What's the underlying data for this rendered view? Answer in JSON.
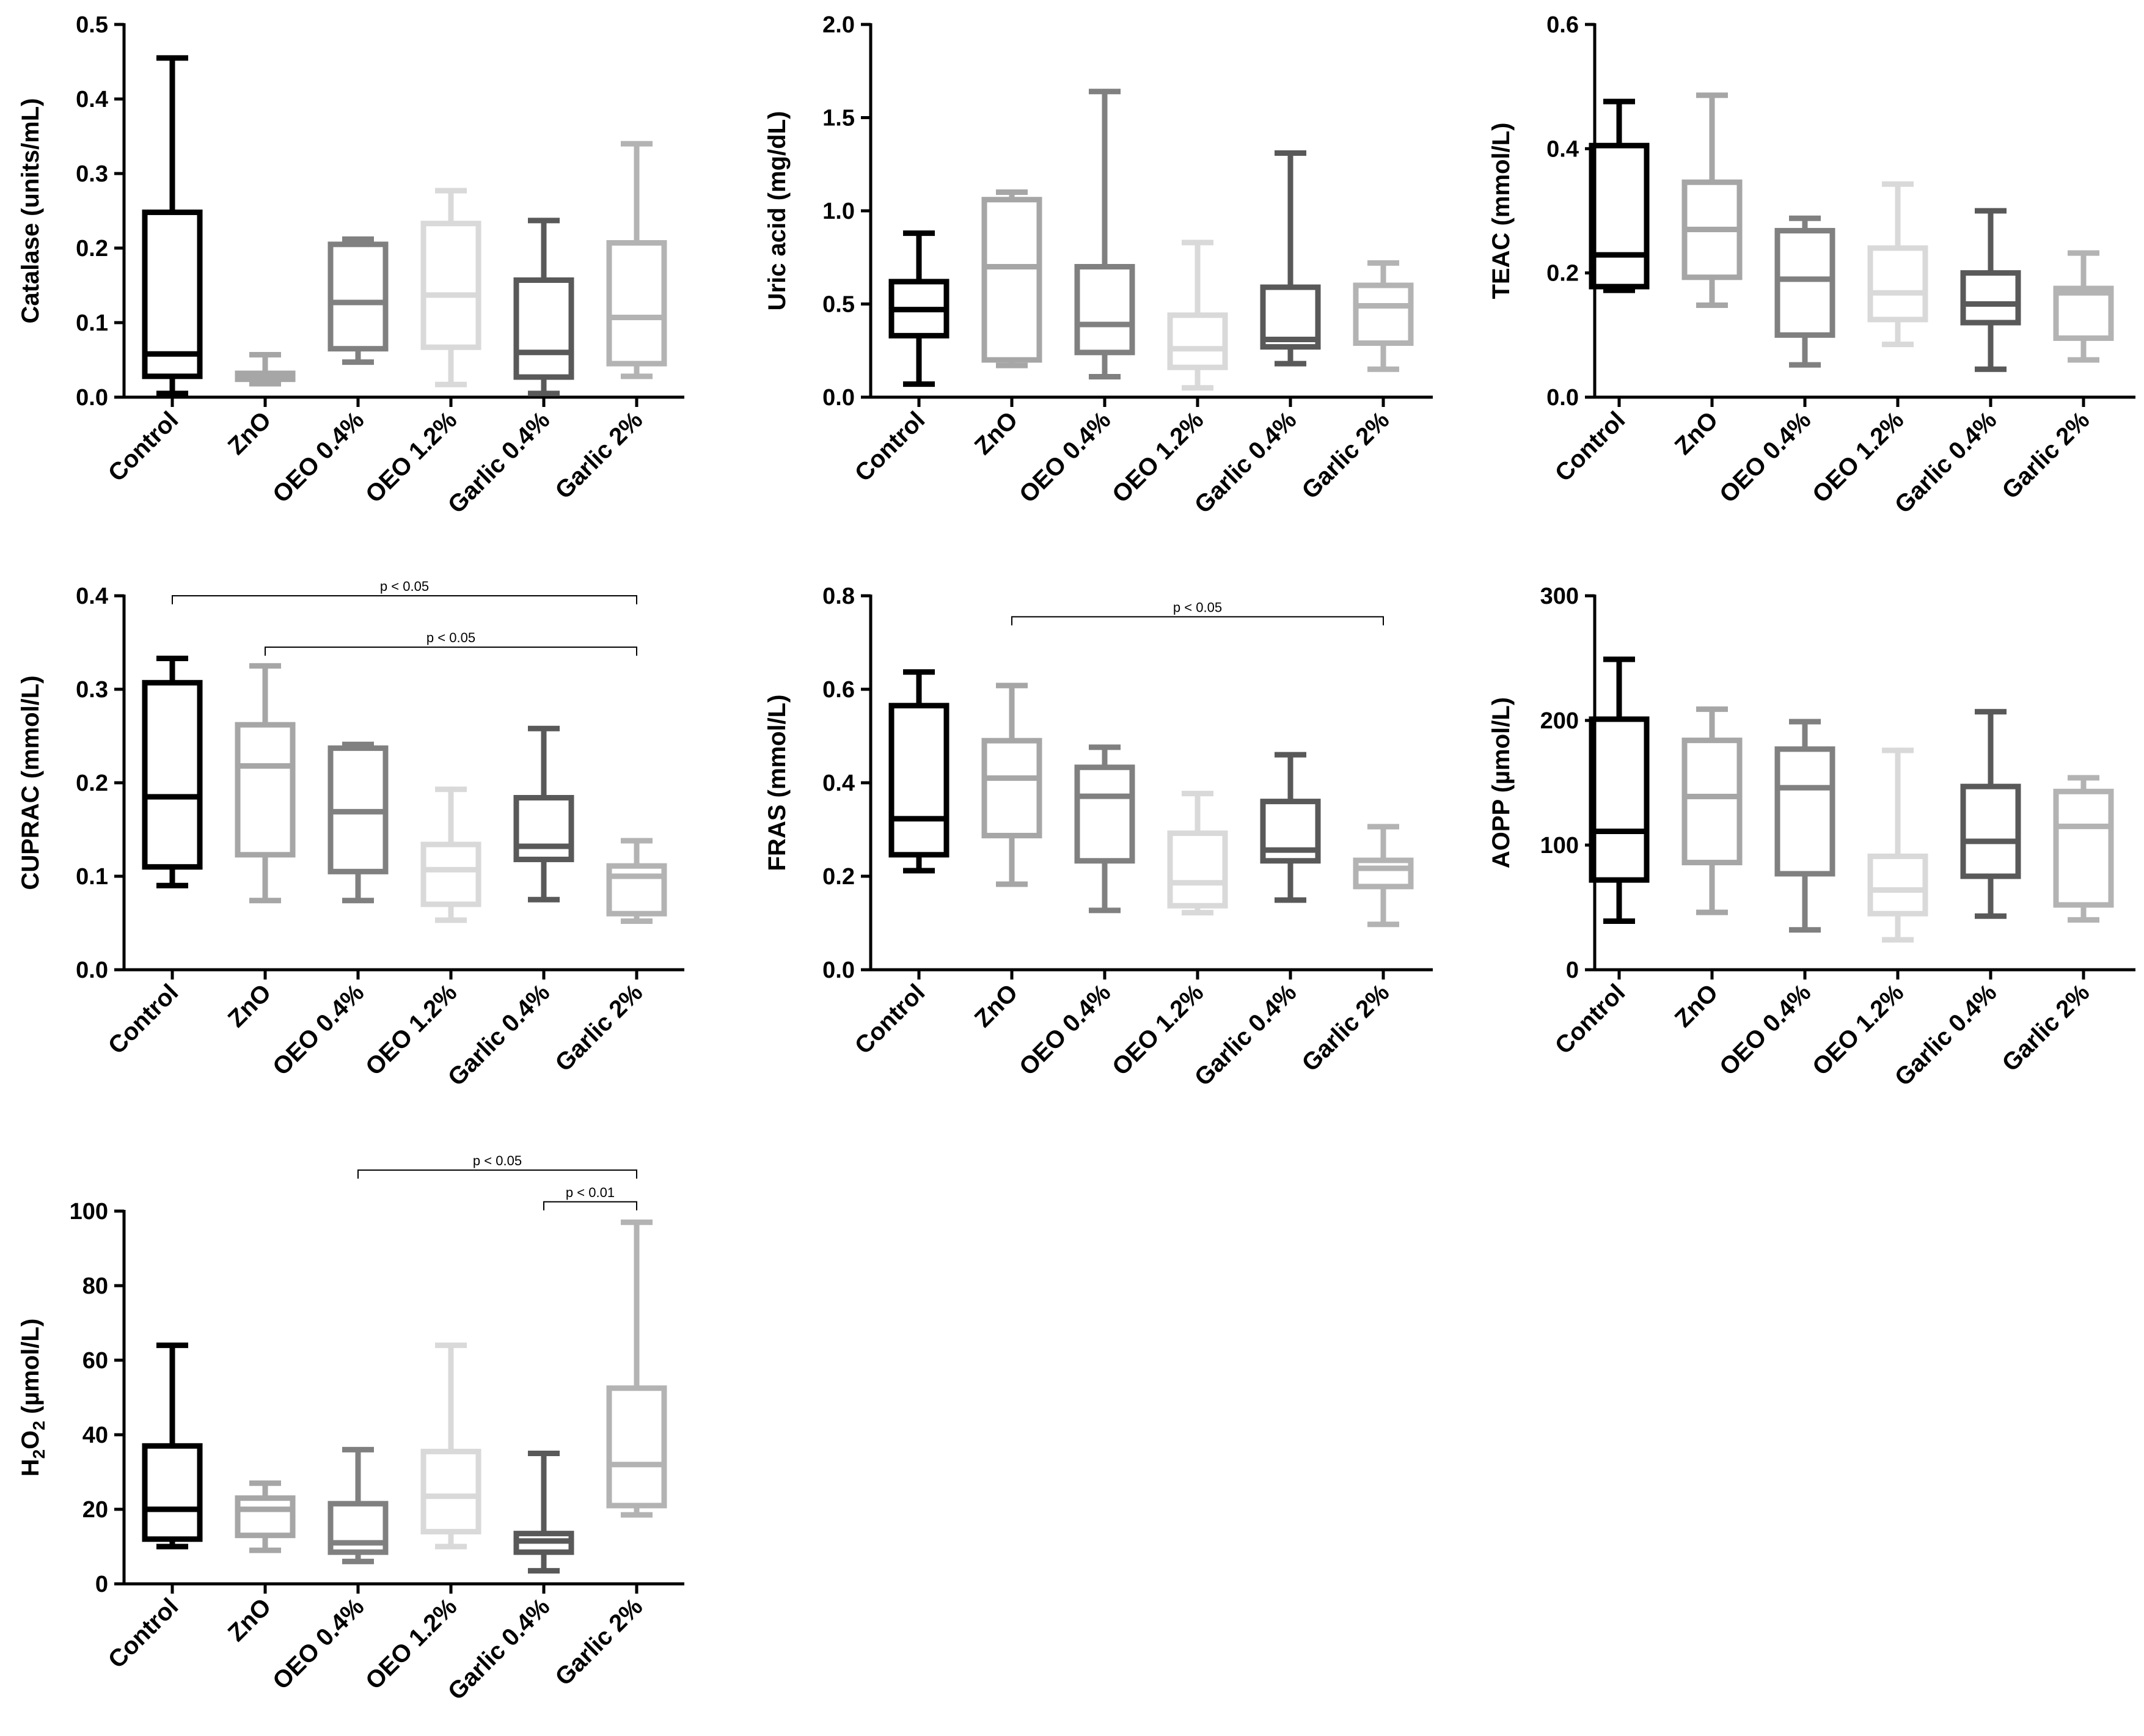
{
  "figure": {
    "panel_count": 7
  },
  "chart_data": [
    {
      "type": "box",
      "ylabel": "Catalase (units/mL)",
      "categories": [
        "Control",
        "ZnO",
        "OEO 0.4%",
        "OEO 1.2%",
        "Garlic 0.4%",
        "Garlic 2%"
      ],
      "ylim": [
        0,
        0.5
      ],
      "yticks": [
        "0.0",
        "0.1",
        "0.2",
        "0.3",
        "0.4",
        "0.5"
      ],
      "boxes": [
        {
          "min": 0.005,
          "q1": 0.028,
          "median": 0.058,
          "q3": 0.248,
          "max": 0.455,
          "color": "#000000"
        },
        {
          "min": 0.018,
          "q1": 0.024,
          "median": 0.028,
          "q3": 0.032,
          "max": 0.057,
          "color": "#a6a6a6"
        },
        {
          "min": 0.047,
          "q1": 0.065,
          "median": 0.127,
          "q3": 0.205,
          "max": 0.212,
          "color": "#808080"
        },
        {
          "min": 0.017,
          "q1": 0.067,
          "median": 0.137,
          "q3": 0.233,
          "max": 0.277,
          "color": "#d9d9d9"
        },
        {
          "min": 0.005,
          "q1": 0.027,
          "median": 0.06,
          "q3": 0.157,
          "max": 0.237,
          "color": "#595959"
        },
        {
          "min": 0.028,
          "q1": 0.045,
          "median": 0.107,
          "q3": 0.207,
          "max": 0.34,
          "color": "#b3b3b3"
        }
      ],
      "significance": []
    },
    {
      "type": "box",
      "ylabel": "Uric acid (mg/dL)",
      "categories": [
        "Control",
        "ZnO",
        "OEO 0.4%",
        "OEO 1.2%",
        "Garlic 0.4%",
        "Garlic 2%"
      ],
      "ylim": [
        0,
        2.0
      ],
      "yticks": [
        "0.0",
        "0.5",
        "1.0",
        "1.5",
        "2.0"
      ],
      "boxes": [
        {
          "min": 0.07,
          "q1": 0.33,
          "median": 0.47,
          "q3": 0.62,
          "max": 0.88,
          "color": "#000000"
        },
        {
          "min": 0.17,
          "q1": 0.2,
          "median": 0.7,
          "q3": 1.06,
          "max": 1.1,
          "color": "#a6a6a6"
        },
        {
          "min": 0.11,
          "q1": 0.24,
          "median": 0.39,
          "q3": 0.7,
          "max": 1.64,
          "color": "#808080"
        },
        {
          "min": 0.05,
          "q1": 0.16,
          "median": 0.26,
          "q3": 0.44,
          "max": 0.83,
          "color": "#d9d9d9"
        },
        {
          "min": 0.18,
          "q1": 0.27,
          "median": 0.31,
          "q3": 0.59,
          "max": 1.31,
          "color": "#595959"
        },
        {
          "min": 0.15,
          "q1": 0.29,
          "median": 0.49,
          "q3": 0.6,
          "max": 0.72,
          "color": "#b3b3b3"
        }
      ],
      "significance": []
    },
    {
      "type": "box",
      "ylabel": "TEAC (mmol/L)",
      "categories": [
        "Control",
        "ZnO",
        "OEO 0.4%",
        "OEO 1.2%",
        "Garlic 0.4%",
        "Garlic 2%"
      ],
      "ylim": [
        0,
        0.6
      ],
      "yticks": [
        "0.0",
        "0.2",
        "0.4",
        "0.6"
      ],
      "boxes": [
        {
          "min": 0.172,
          "q1": 0.178,
          "median": 0.229,
          "q3": 0.405,
          "max": 0.476,
          "color": "#000000"
        },
        {
          "min": 0.148,
          "q1": 0.193,
          "median": 0.27,
          "q3": 0.346,
          "max": 0.486,
          "color": "#a6a6a6"
        },
        {
          "min": 0.052,
          "q1": 0.1,
          "median": 0.19,
          "q3": 0.268,
          "max": 0.288,
          "color": "#808080"
        },
        {
          "min": 0.085,
          "q1": 0.125,
          "median": 0.168,
          "q3": 0.24,
          "max": 0.343,
          "color": "#d9d9d9"
        },
        {
          "min": 0.045,
          "q1": 0.12,
          "median": 0.15,
          "q3": 0.2,
          "max": 0.3,
          "color": "#595959"
        },
        {
          "min": 0.06,
          "q1": 0.095,
          "median": 0.168,
          "q3": 0.175,
          "max": 0.232,
          "color": "#b3b3b3"
        }
      ],
      "significance": []
    },
    {
      "type": "box",
      "ylabel": "CUPRAC (mmol/L)",
      "categories": [
        "Control",
        "ZnO",
        "OEO 0.4%",
        "OEO 1.2%",
        "Garlic 0.4%",
        "Garlic 2%"
      ],
      "ylim": [
        0,
        0.4
      ],
      "yticks": [
        "0.0",
        "0.1",
        "0.2",
        "0.3",
        "0.4"
      ],
      "boxes": [
        {
          "min": 0.09,
          "q1": 0.11,
          "median": 0.185,
          "q3": 0.307,
          "max": 0.333,
          "color": "#000000"
        },
        {
          "min": 0.074,
          "q1": 0.123,
          "median": 0.218,
          "q3": 0.262,
          "max": 0.325,
          "color": "#a6a6a6"
        },
        {
          "min": 0.074,
          "q1": 0.105,
          "median": 0.169,
          "q3": 0.237,
          "max": 0.241,
          "color": "#808080"
        },
        {
          "min": 0.053,
          "q1": 0.07,
          "median": 0.107,
          "q3": 0.134,
          "max": 0.193,
          "color": "#d9d9d9"
        },
        {
          "min": 0.075,
          "q1": 0.118,
          "median": 0.132,
          "q3": 0.184,
          "max": 0.258,
          "color": "#595959"
        },
        {
          "min": 0.052,
          "q1": 0.06,
          "median": 0.1,
          "q3": 0.111,
          "max": 0.138,
          "color": "#b3b3b3"
        }
      ],
      "significance": [
        {
          "from": 0,
          "to": 5,
          "label": "p < 0.05",
          "level": 0.4
        },
        {
          "from": 1,
          "to": 5,
          "label": "p < 0.05",
          "level": 0.345
        }
      ]
    },
    {
      "type": "box",
      "ylabel": "FRAS (mmol/L)",
      "categories": [
        "Control",
        "ZnO",
        "OEO 0.4%",
        "OEO 1.2%",
        "Garlic 0.4%",
        "Garlic 2%"
      ],
      "ylim": [
        0,
        0.8
      ],
      "yticks": [
        "0.0",
        "0.2",
        "0.4",
        "0.6",
        "0.8"
      ],
      "boxes": [
        {
          "min": 0.212,
          "q1": 0.246,
          "median": 0.323,
          "q3": 0.565,
          "max": 0.637,
          "color": "#000000"
        },
        {
          "min": 0.183,
          "q1": 0.287,
          "median": 0.41,
          "q3": 0.49,
          "max": 0.608,
          "color": "#a6a6a6"
        },
        {
          "min": 0.127,
          "q1": 0.233,
          "median": 0.371,
          "q3": 0.433,
          "max": 0.476,
          "color": "#808080"
        },
        {
          "min": 0.122,
          "q1": 0.137,
          "median": 0.186,
          "q3": 0.292,
          "max": 0.377,
          "color": "#d9d9d9"
        },
        {
          "min": 0.149,
          "q1": 0.233,
          "median": 0.256,
          "q3": 0.36,
          "max": 0.46,
          "color": "#595959"
        },
        {
          "min": 0.097,
          "q1": 0.178,
          "median": 0.217,
          "q3": 0.234,
          "max": 0.306,
          "color": "#b3b3b3"
        }
      ],
      "significance": [
        {
          "from": 1,
          "to": 5,
          "label": "p < 0.05",
          "level": 0.755
        }
      ]
    },
    {
      "type": "box",
      "ylabel": "AOPP (µmol/L)",
      "categories": [
        "Control",
        "ZnO",
        "OEO 0.4%",
        "OEO 1.2%",
        "Garlic 0.4%",
        "Garlic 2%"
      ],
      "ylim": [
        0,
        300
      ],
      "yticks": [
        "0",
        "100",
        "200",
        "300"
      ],
      "boxes": [
        {
          "min": 39,
          "q1": 72,
          "median": 111,
          "q3": 201,
          "max": 249,
          "color": "#000000"
        },
        {
          "min": 46,
          "q1": 86,
          "median": 139,
          "q3": 184,
          "max": 209,
          "color": "#a6a6a6"
        },
        {
          "min": 32,
          "q1": 77,
          "median": 146,
          "q3": 177,
          "max": 199,
          "color": "#808080"
        },
        {
          "min": 24,
          "q1": 45,
          "median": 64,
          "q3": 91,
          "max": 176,
          "color": "#d9d9d9"
        },
        {
          "min": 43,
          "q1": 75,
          "median": 103,
          "q3": 147,
          "max": 207,
          "color": "#595959"
        },
        {
          "min": 40,
          "q1": 52,
          "median": 115,
          "q3": 143,
          "max": 154,
          "color": "#b3b3b3"
        }
      ],
      "significance": []
    },
    {
      "type": "box",
      "ylabel": "H2O2 (µmol/L)",
      "ylabel_parts": {
        "pre": "H",
        "sub1": "2",
        "mid": "O",
        "sub2": "2",
        "post": " (µmol/L)"
      },
      "categories": [
        "Control",
        "ZnO",
        "OEO 0.4%",
        "OEO 1.2%",
        "Garlic 0.4%",
        "Garlic 2%"
      ],
      "ylim": [
        0,
        100
      ],
      "yticks": [
        "0",
        "20",
        "40",
        "60",
        "80",
        "100"
      ],
      "boxes": [
        {
          "min": 10,
          "q1": 12,
          "median": 20,
          "q3": 37,
          "max": 64,
          "color": "#000000"
        },
        {
          "min": 9,
          "q1": 13,
          "median": 20,
          "q3": 23,
          "max": 27,
          "color": "#a6a6a6"
        },
        {
          "min": 6,
          "q1": 8.5,
          "median": 11,
          "q3": 21.5,
          "max": 36,
          "color": "#808080"
        },
        {
          "min": 10,
          "q1": 14,
          "median": 23.5,
          "q3": 35.5,
          "max": 64,
          "color": "#d9d9d9"
        },
        {
          "min": 3.5,
          "q1": 8.5,
          "median": 11.5,
          "q3": 13.5,
          "max": 35,
          "color": "#595959"
        },
        {
          "min": 18.5,
          "q1": 21,
          "median": 32,
          "q3": 52.5,
          "max": 97,
          "color": "#b3b3b3"
        }
      ],
      "significance": [
        {
          "from": 2,
          "to": 5,
          "label": "p < 0.05",
          "level": 111
        },
        {
          "from": 4,
          "to": 5,
          "label": "p < 0.01",
          "level": 102.5
        }
      ]
    }
  ]
}
